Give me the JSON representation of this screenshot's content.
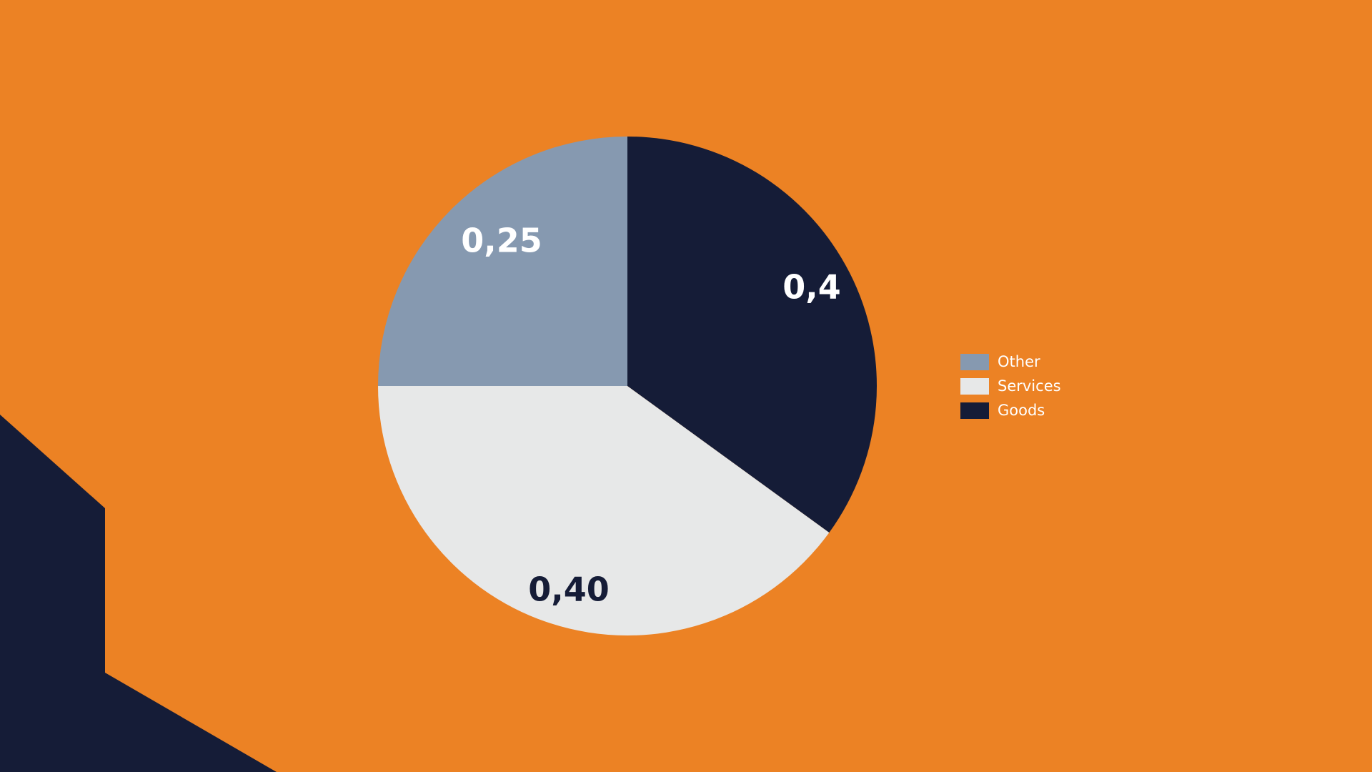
{
  "colors": {
    "background": "#EC8224",
    "accent_shape": "#151C37",
    "other": "#8699B0",
    "services": "#E7E8E8",
    "goods": "#151C37"
  },
  "chart_data": {
    "type": "pie",
    "start": "top",
    "direction": "clockwise",
    "slices": [
      {
        "name": "Goods",
        "value": 0.35,
        "label": "0,4",
        "color": "#151C37",
        "label_color": "#FFFFFF"
      },
      {
        "name": "Services",
        "value": 0.4,
        "label": "0,40",
        "color": "#E7E8E8",
        "label_color": "#151C37"
      },
      {
        "name": "Other",
        "value": 0.25,
        "label": "0,25",
        "color": "#8699B0",
        "label_color": "#FFFFFF"
      }
    ],
    "legend": {
      "placement": "right",
      "entries": [
        {
          "name": "Other",
          "color": "#8699B0"
        },
        {
          "name": "Services",
          "color": "#E7E8E8"
        },
        {
          "name": "Goods",
          "color": "#151C37"
        }
      ]
    }
  }
}
